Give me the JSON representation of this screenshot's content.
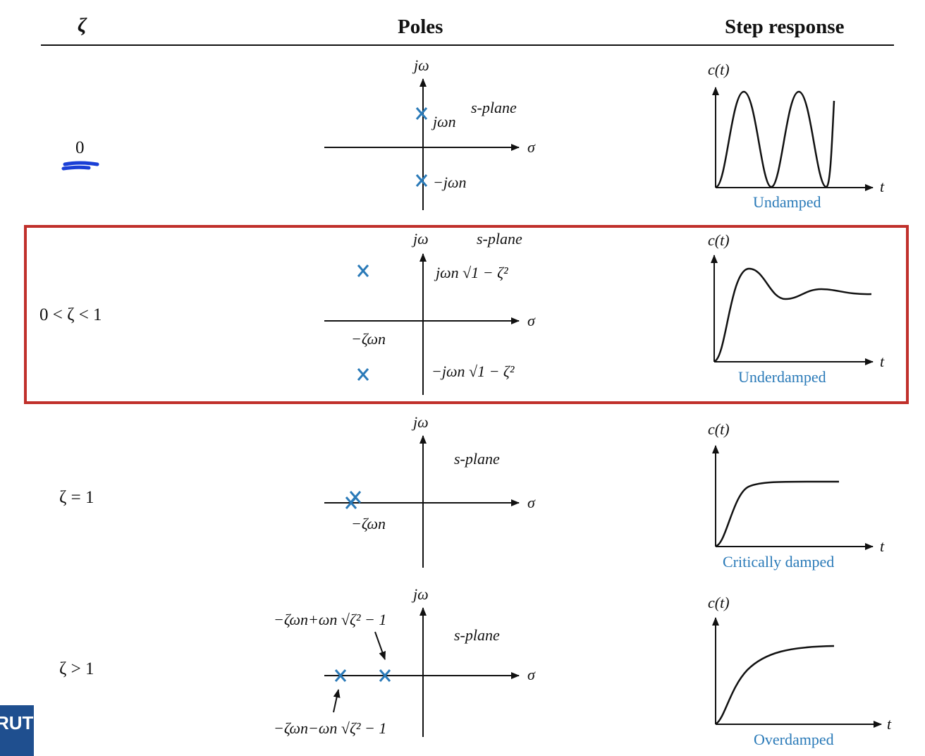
{
  "header": {
    "zeta": "ζ",
    "poles": "Poles",
    "step": "Step response"
  },
  "common": {
    "jw": "jω",
    "sigma": "σ",
    "splane": "s-plane",
    "ct": "c(t)",
    "t": "t"
  },
  "rows": [
    {
      "zeta": "0",
      "pole_top": "jωn",
      "pole_bottom": "−jωn",
      "caption": "Undamped"
    },
    {
      "zeta": "0 < ζ < 1",
      "pole_top": "jωn √1 − ζ²",
      "pole_bottom": "−jωn √1 − ζ²",
      "real": "−ζωn",
      "caption": "Underdamped"
    },
    {
      "zeta": "ζ = 1",
      "real": "−ζωn",
      "caption": "Critically damped"
    },
    {
      "zeta": "ζ > 1",
      "pole_a": "−ζωn+ωn √ζ² − 1",
      "pole_b": "−ζωn−ωn √ζ² − 1",
      "caption": "Overdamped"
    }
  ],
  "logo": "RUT",
  "colors": {
    "pole": "#2a7ab8",
    "highlight": "#c0302b",
    "annotation": "#1a3fd6",
    "caption": "#2a7ab8"
  }
}
